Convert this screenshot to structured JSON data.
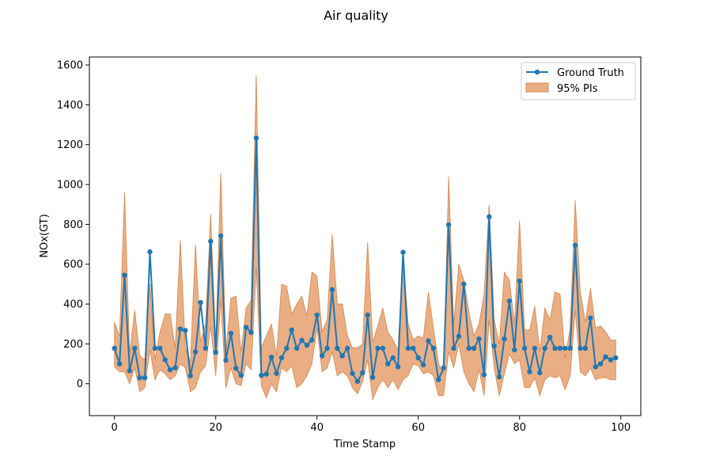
{
  "chart_data": {
    "type": "line",
    "title": "Air quality",
    "xlabel": "Time Stamp",
    "ylabel": "NOx(GT)",
    "xlim": [
      -4.95,
      103.95
    ],
    "ylim": [
      -160,
      1640
    ],
    "xticks": [
      0,
      20,
      40,
      60,
      80,
      100
    ],
    "yticks": [
      0,
      200,
      400,
      600,
      800,
      1000,
      1200,
      1400,
      1600
    ],
    "grid": false,
    "legend_position": "top-right",
    "legend": {
      "line": "Ground Truth",
      "band": "95% PIs"
    },
    "colors": {
      "line": "#1f77b4",
      "band_fill": "#e2935b",
      "band_edge": "#d9844b"
    },
    "x": [
      0,
      1,
      2,
      3,
      4,
      5,
      6,
      7,
      8,
      9,
      10,
      11,
      12,
      13,
      14,
      15,
      16,
      17,
      18,
      19,
      20,
      21,
      22,
      23,
      24,
      25,
      26,
      27,
      28,
      29,
      30,
      31,
      32,
      33,
      34,
      35,
      36,
      37,
      38,
      39,
      40,
      41,
      42,
      43,
      44,
      45,
      46,
      47,
      48,
      49,
      50,
      51,
      52,
      53,
      54,
      55,
      56,
      57,
      58,
      59,
      60,
      61,
      62,
      63,
      64,
      65,
      66,
      67,
      68,
      69,
      70,
      71,
      72,
      73,
      74,
      75,
      76,
      77,
      78,
      79,
      80,
      81,
      82,
      83,
      84,
      85,
      86,
      87,
      88,
      89,
      90,
      91,
      92,
      93,
      94,
      95,
      96,
      97,
      98,
      99
    ],
    "series": [
      {
        "name": "Ground Truth",
        "values": [
          178,
          100,
          545,
          65,
          178,
          30,
          30,
          662,
          178,
          178,
          120,
          70,
          80,
          275,
          268,
          40,
          160,
          408,
          178,
          715,
          158,
          742,
          118,
          253,
          78,
          42,
          283,
          258,
          1233,
          42,
          48,
          133,
          52,
          130,
          178,
          270,
          178,
          218,
          193,
          220,
          345,
          140,
          178,
          472,
          178,
          140,
          178,
          52,
          12,
          55,
          345,
          32,
          178,
          178,
          100,
          130,
          85,
          660,
          178,
          178,
          130,
          95,
          215,
          178,
          20,
          80,
          798,
          178,
          238,
          500,
          178,
          178,
          225,
          45,
          838,
          190,
          35,
          225,
          415,
          170,
          515,
          178,
          60,
          178,
          55,
          178,
          233,
          178,
          178,
          178,
          178,
          695,
          178,
          178,
          330,
          85,
          100,
          135,
          120,
          130
        ]
      }
    ],
    "band": {
      "name": "95% PIs",
      "upper": [
        310,
        240,
        960,
        150,
        370,
        140,
        120,
        500,
        120,
        260,
        350,
        350,
        180,
        720,
        180,
        110,
        700,
        210,
        300,
        850,
        190,
        1060,
        160,
        430,
        440,
        160,
        380,
        420,
        1550,
        180,
        240,
        300,
        140,
        500,
        490,
        350,
        400,
        440,
        340,
        560,
        540,
        260,
        320,
        750,
        400,
        400,
        240,
        180,
        180,
        200,
        710,
        210,
        290,
        380,
        260,
        220,
        170,
        640,
        300,
        220,
        240,
        230,
        460,
        280,
        100,
        50,
        1040,
        300,
        600,
        520,
        360,
        240,
        300,
        450,
        900,
        320,
        200,
        560,
        520,
        300,
        820,
        270,
        270,
        390,
        160,
        380,
        320,
        460,
        450,
        130,
        280,
        920,
        460,
        310,
        480,
        280,
        290,
        260,
        220,
        220
      ],
      "lower": [
        85,
        60,
        60,
        0,
        80,
        -40,
        -20,
        170,
        20,
        70,
        50,
        20,
        40,
        100,
        80,
        -40,
        -20,
        60,
        90,
        290,
        40,
        420,
        -20,
        80,
        0,
        -10,
        100,
        70,
        580,
        -10,
        -70,
        0,
        -40,
        80,
        60,
        90,
        -20,
        0,
        40,
        100,
        280,
        60,
        80,
        160,
        40,
        60,
        40,
        -20,
        -50,
        10,
        120,
        -80,
        -20,
        20,
        -20,
        20,
        -30,
        20,
        40,
        100,
        90,
        50,
        60,
        40,
        -60,
        -60,
        160,
        80,
        200,
        60,
        0,
        -40,
        70,
        -60,
        320,
        80,
        -60,
        50,
        150,
        100,
        120,
        -20,
        -20,
        30,
        -60,
        20,
        40,
        30,
        40,
        -30,
        40,
        370,
        60,
        40,
        80,
        20,
        30,
        30,
        20,
        20
      ]
    }
  }
}
